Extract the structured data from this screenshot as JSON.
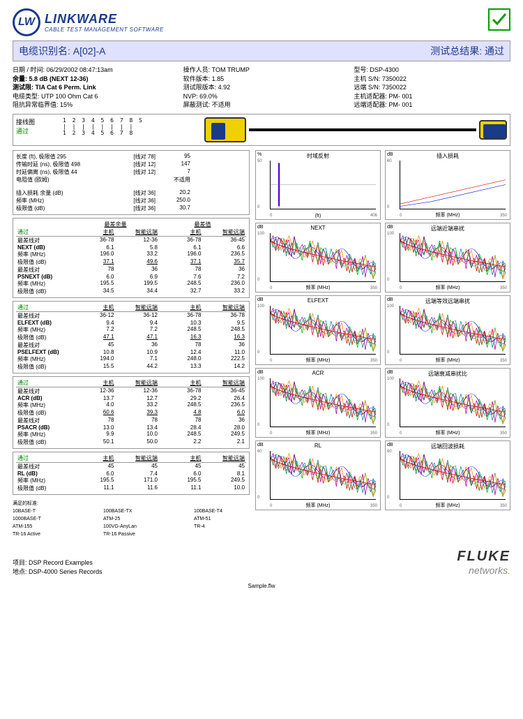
{
  "logo": {
    "initials": "LW",
    "title": "LINKWARE",
    "sub": "CABLE TEST MANAGEMENT SOFTWARE"
  },
  "titleBar": {
    "left": "电缆识别名: A[02]-A",
    "right": "测试总结果: 通过"
  },
  "info": {
    "col1": {
      "l1": "日期 / 时间: 06/29/2002 08:47:13am",
      "l2": "余量: 5.8 dB (NEXT 12-36)",
      "l3": "测试限: TIA Cat 6  Perm. Link",
      "l4": "电缆类型: UTP 100 Ohm Cat 6",
      "l5": "阻抗异常临界值: 15%"
    },
    "col2": {
      "l1": "操作人员: TOM TRUMP",
      "l2": "软件版本: 1.85",
      "l3": "测试限版本: 4.92",
      "l4": "NVP: 69.0%",
      "l5": "屏蔽测试: 不适用"
    },
    "col3": {
      "l1": "型号: DSP-4300",
      "l2": "主机 S/N: 7350022",
      "l3": "远端 S/N: 7350022",
      "l4": "主机适配器: PM- 001",
      "l5": "远端适配器: PM- 001"
    }
  },
  "wiremap": {
    "label": "接线图",
    "pass": "通过",
    "pins_top": "1 2 3 4 5 6 7 8 S",
    "pins_mid": "| | | | | | | |",
    "pins_bot": "1 2 3 4 5 6 7 8"
  },
  "box1": {
    "r1": {
      "a": "长度 (ft), 极限值 295",
      "b": "[线对 78]",
      "c": "95"
    },
    "r2": {
      "a": "传输时延 (ns), 极限值 498",
      "b": "[线对 12]",
      "c": "147"
    },
    "r3": {
      "a": "时延偏离 (ns), 极限值 44",
      "b": "[线对 12]",
      "c": "7"
    },
    "r4": {
      "a": "电阻值 (欧姆)",
      "b": "",
      "c": "不适用"
    },
    "gap": "",
    "r5": {
      "a": "插入损耗 余量 (dB)",
      "b": "[线对 36]",
      "c": "20.2"
    },
    "r6": {
      "a": "频率 (MHz)",
      "b": "[线对 36]",
      "c": "250.0"
    },
    "r7": {
      "a": "极限值 (dB)",
      "b": "[线对 36]",
      "c": "30.7"
    }
  },
  "tbl_next": {
    "sub1": "最差余量",
    "sub2": "最差值",
    "pass": "通过",
    "h1": "主机",
    "h2": "智能远端",
    "h3": "主机",
    "h4": "智能远端",
    "rows": [
      {
        "n": "最差线对",
        "a": "36-78",
        "b": "12-36",
        "c": "36-78",
        "d": "36-45"
      },
      {
        "n": "NEXT (dB)",
        "a": "6.1",
        "b": "5.8",
        "c": "6.1",
        "d": "6.6",
        "bold": true
      },
      {
        "n": "频率 (MHz)",
        "a": "196.0",
        "b": "33.2",
        "c": "196.0",
        "d": "236.5"
      },
      {
        "n": "极限值 (dB)",
        "a": "37.1",
        "b": "49.6",
        "c": "37.1",
        "d": "35.7",
        "u": true
      },
      {
        "n": "最差线对",
        "a": "78",
        "b": "36",
        "c": "78",
        "d": "36"
      },
      {
        "n": "PSNEXT (dB)",
        "a": "6.0",
        "b": "6.9",
        "c": "7.6",
        "d": "7.2",
        "bold": true
      },
      {
        "n": "频率 (MHz)",
        "a": "195.5",
        "b": "199.5",
        "c": "248.5",
        "d": "236.0"
      },
      {
        "n": "极限值 (dB)",
        "a": "34.5",
        "b": "34.4",
        "c": "32.7",
        "d": "33.2"
      }
    ]
  },
  "tbl_elfext": {
    "pass": "通过",
    "h1": "主机",
    "h2": "智能远端",
    "h3": "主机",
    "h4": "智能远端",
    "rows": [
      {
        "n": "最差线对",
        "a": "36-12",
        "b": "36-12",
        "c": "36-78",
        "d": "36-78"
      },
      {
        "n": "ELFEXT (dB)",
        "a": "9.4",
        "b": "9.4",
        "c": "10.3",
        "d": "9.5",
        "bold": true
      },
      {
        "n": "频率 (MHz)",
        "a": "7.2",
        "b": "7.2",
        "c": "248.5",
        "d": "248.5"
      },
      {
        "n": "极限值 (dB)",
        "a": "47.1",
        "b": "47.1",
        "c": "16.3",
        "d": "16.3",
        "u": true
      },
      {
        "n": "最差线对",
        "a": "45",
        "b": "36",
        "c": "78",
        "d": "36"
      },
      {
        "n": "PSELFEXT (dB)",
        "a": "10.8",
        "b": "10.9",
        "c": "12.4",
        "d": "11.0",
        "bold": true
      },
      {
        "n": "频率 (MHz)",
        "a": "194.0",
        "b": "7.1",
        "c": "248.0",
        "d": "222.5"
      },
      {
        "n": "极限值 (dB)",
        "a": "15.5",
        "b": "44.2",
        "c": "13.3",
        "d": "14.2"
      }
    ]
  },
  "tbl_acr": {
    "pass": "通过",
    "h1": "主机",
    "h2": "智能远端",
    "h3": "主机",
    "h4": "智能远端",
    "rows": [
      {
        "n": "最差线对",
        "a": "12-36",
        "b": "12-36",
        "c": "36-78",
        "d": "36-45"
      },
      {
        "n": "ACR (dB)",
        "a": "13.7",
        "b": "12.7",
        "c": "29.2",
        "d": "26.4",
        "bold": true
      },
      {
        "n": "频率 (MHz)",
        "a": "4.0",
        "b": "33.2",
        "c": "248.5",
        "d": "236.5"
      },
      {
        "n": "极限值 (dB)",
        "a": "60.6",
        "b": "39.3",
        "c": "4.8",
        "d": "6.0",
        "u": true
      },
      {
        "n": "最差线对",
        "a": "78",
        "b": "78",
        "c": "78",
        "d": "36"
      },
      {
        "n": "PSACR (dB)",
        "a": "13.0",
        "b": "13.4",
        "c": "28.4",
        "d": "28.0",
        "bold": true
      },
      {
        "n": "频率 (MHz)",
        "a": "9.9",
        "b": "10.0",
        "c": "248.5",
        "d": "249.5"
      },
      {
        "n": "极限值 (dB)",
        "a": "50.1",
        "b": "50.0",
        "c": "2.2",
        "d": "2.1"
      }
    ]
  },
  "tbl_rl": {
    "pass": "通过",
    "h1": "主机",
    "h2": "智能远端",
    "h3": "主机",
    "h4": "智能远端",
    "rows": [
      {
        "n": "最差线对",
        "a": "45",
        "b": "45",
        "c": "45",
        "d": "45"
      },
      {
        "n": "RL (dB)",
        "a": "6.0",
        "b": "7.4",
        "c": "6.0",
        "d": "8.1",
        "bold": true
      },
      {
        "n": "频率 (MHz)",
        "a": "195.5",
        "b": "171.0",
        "c": "195.5",
        "d": "249.5"
      },
      {
        "n": "极限值 (dB)",
        "a": "11.1",
        "b": "11.6",
        "c": "11.1",
        "d": "10.0"
      }
    ]
  },
  "standards": {
    "title": "满足的标准:",
    "rows": [
      [
        "10BASE-T",
        "100BASE-TX",
        "100BASE-T4"
      ],
      [
        "1000BASE-T",
        "ATM-25",
        "ATM-51"
      ],
      [
        "ATM-155",
        "100VG-AnyLan",
        "TR-4"
      ],
      [
        "TR-16 Active",
        "TR-16 Passive",
        ""
      ]
    ]
  },
  "charts": {
    "tdr": {
      "title": "时域反射",
      "yunit": "%",
      "xunit": "(ft)",
      "xmax": "406",
      "ymin": "-50",
      "ymax": "50"
    },
    "il": {
      "title": "插入损耗",
      "yunit": "dB",
      "xunit": "频率 (MHz)",
      "xmax": "350",
      "ymax": "60"
    },
    "next": {
      "title": "NEXT",
      "yunit": "dB",
      "xunit": "频率 (MHz)",
      "xmax": "350",
      "ymax": "100"
    },
    "fext": {
      "title": "远端近端串扰",
      "yunit": "dB",
      "xunit": "频率 (MHz)",
      "xmax": "350",
      "ymax": "100"
    },
    "elfext": {
      "title": "ELFEXT",
      "yunit": "dB",
      "xunit": "频率 (MHz)",
      "xmax": "350",
      "ymax": "100"
    },
    "psfext": {
      "title": "远端等效远端串扰",
      "yunit": "dB",
      "xunit": "频率 (MHz)",
      "xmax": "350",
      "ymax": "100"
    },
    "acr": {
      "title": "ACR",
      "yunit": "dB",
      "xunit": "频率 (MHz)",
      "xmax": "350",
      "ymax": "100"
    },
    "psacr": {
      "title": "远端衰减串扰比",
      "yunit": "dB",
      "xunit": "频率 (MHz)",
      "xmax": "350",
      "ymax": "100"
    },
    "rl": {
      "title": "RL",
      "yunit": "dB",
      "xunit": "频率 (MHz)",
      "xmax": "350",
      "ymax": "60"
    },
    "rlr": {
      "title": "远端回波损耗",
      "yunit": "dB",
      "xunit": "频率 (MHz)",
      "xmax": "350",
      "ymax": "60"
    }
  },
  "footer": {
    "l1": "项目: DSP Record Examples",
    "l2": "地点: DSP-4000 Series Records",
    "fluke": "FLUKE",
    "networks": "networks",
    "sample": "Sample.flw"
  },
  "colors": {
    "noise": [
      "#d00",
      "#0a0",
      "#00d",
      "#a0a",
      "#088",
      "#f80"
    ],
    "limit": "#d00"
  }
}
